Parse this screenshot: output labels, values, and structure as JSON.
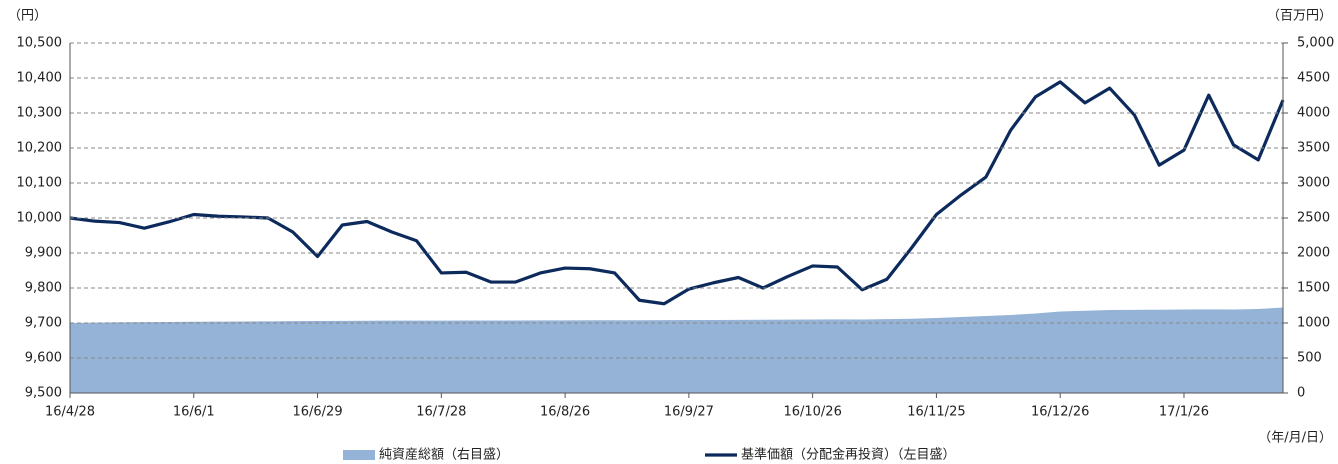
{
  "chart_data": {
    "type": "line",
    "y_unit_label": "（円）",
    "y2_unit_label": "（百万円）",
    "x_unit_label": "（年/月/日）",
    "categories": [
      "16/4/28",
      null,
      null,
      null,
      null,
      "16/6/1",
      null,
      null,
      null,
      null,
      "16/6/29",
      null,
      null,
      null,
      null,
      "16/7/28",
      null,
      null,
      null,
      null,
      "16/8/26",
      null,
      null,
      null,
      null,
      "16/9/27",
      null,
      null,
      null,
      null,
      "16/10/26",
      null,
      null,
      null,
      null,
      "16/11/25",
      null,
      null,
      null,
      null,
      "16/12/26",
      null,
      null,
      null,
      null,
      "17/1/26",
      null,
      null,
      null,
      null
    ],
    "series": [
      {
        "name": "純資産総額（右目盛）",
        "type": "area",
        "axis": "y2",
        "color": "#95b3d7",
        "values": [
          1000,
          1005,
          1010,
          1012,
          1015,
          1018,
          1020,
          1022,
          1024,
          1026,
          1028,
          1030,
          1032,
          1034,
          1034,
          1034,
          1035,
          1036,
          1036,
          1037,
          1038,
          1039,
          1040,
          1040,
          1041,
          1042,
          1043,
          1045,
          1047,
          1048,
          1050,
          1052,
          1050,
          1055,
          1060,
          1071,
          1085,
          1100,
          1115,
          1135,
          1164,
          1175,
          1186,
          1188,
          1190,
          1193,
          1195,
          1193,
          1200,
          1221
        ]
      },
      {
        "name": "基準価額（分配金再投資）（左目盛）",
        "type": "line",
        "axis": "y",
        "color": "#0d2a5c",
        "values": [
          10000,
          9991,
          9987,
          9971,
          9989,
          10010,
          10005,
          10003,
          10000,
          9960,
          9890,
          9980,
          9990,
          9960,
          9935,
          9843,
          9845,
          9817,
          9817,
          9843,
          9857,
          9855,
          9843,
          9765,
          9755,
          9797,
          9815,
          9830,
          9800,
          9833,
          9863,
          9860,
          9795,
          9825,
          9915,
          10010,
          10066,
          10117,
          10251,
          10346,
          10389,
          10329,
          10371,
          10294,
          10151,
          10194,
          10351,
          10209,
          10166,
          10337
        ]
      }
    ],
    "ylim": [
      9500,
      10500
    ],
    "yticks": [
      {
        "value": 9500,
        "label": "9,500"
      },
      {
        "value": 9600,
        "label": "9,600"
      },
      {
        "value": 9700,
        "label": "9,700"
      },
      {
        "value": 9800,
        "label": "9,800"
      },
      {
        "value": 9900,
        "label": "9,900"
      },
      {
        "value": 10000,
        "label": "10,000"
      },
      {
        "value": 10100,
        "label": "10,100"
      },
      {
        "value": 10200,
        "label": "10,200"
      },
      {
        "value": 10300,
        "label": "10,300"
      },
      {
        "value": 10400,
        "label": "10,400"
      },
      {
        "value": 10500,
        "label": "10,500"
      }
    ],
    "y2lim": [
      0,
      5000
    ],
    "y2ticks": [
      0,
      500,
      1000,
      1500,
      2000,
      2500,
      3000,
      3500,
      4000,
      4500,
      {
        "value": 5000,
        "label": "5,000"
      }
    ],
    "grid": true
  }
}
